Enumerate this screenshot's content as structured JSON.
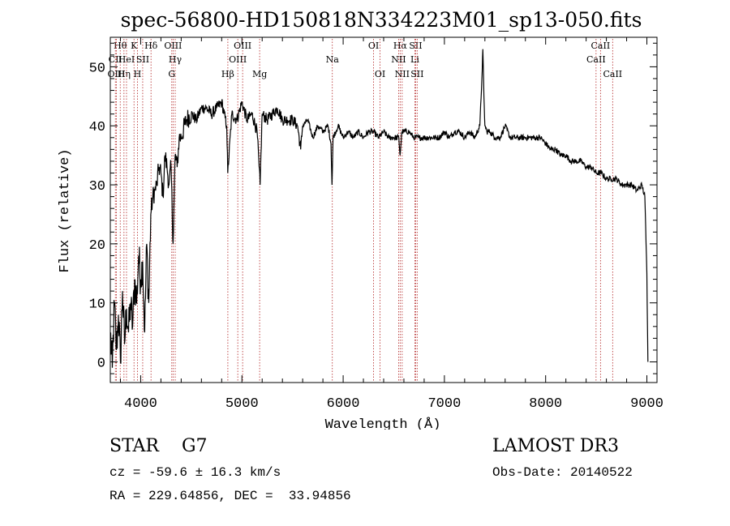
{
  "chart_data": {
    "type": "line",
    "title": "spec-56800-HD150818N334223M01_sp13-050.fits",
    "xlabel": "Wavelength (Å)",
    "ylabel": "Flux (relative)",
    "xlim": [
      3700,
      9100
    ],
    "ylim": [
      -3.5,
      55
    ],
    "xticks": [
      4000,
      5000,
      6000,
      7000,
      8000,
      9000
    ],
    "yticks": [
      0,
      10,
      20,
      30,
      40,
      50
    ],
    "grid": false,
    "series": [
      {
        "x": [
          3700,
          3720,
          3740,
          3760,
          3780,
          3800,
          3820,
          3840,
          3860,
          3880,
          3900,
          3920,
          3940,
          3960,
          3980,
          4000,
          4020,
          4040,
          4060,
          4080,
          4100,
          4120,
          4140,
          4160,
          4180,
          4200,
          4220,
          4240,
          4260,
          4280,
          4300,
          4320,
          4340,
          4360,
          4380,
          4400,
          4450,
          4500,
          4550,
          4600,
          4650,
          4700,
          4750,
          4800,
          4850,
          4860,
          4900,
          4950,
          5000,
          5050,
          5100,
          5150,
          5170,
          5180,
          5200,
          5250,
          5300,
          5350,
          5400,
          5450,
          5500,
          5550,
          5580,
          5600,
          5650,
          5700,
          5750,
          5800,
          5850,
          5880,
          5890,
          5900,
          5950,
          6000,
          6050,
          6100,
          6150,
          6200,
          6250,
          6300,
          6350,
          6400,
          6450,
          6500,
          6550,
          6562,
          6580,
          6600,
          6650,
          6700,
          6750,
          6800,
          6850,
          6900,
          6950,
          7000,
          7050,
          7100,
          7150,
          7200,
          7250,
          7300,
          7350,
          7370,
          7380,
          7390,
          7400,
          7420,
          7450,
          7500,
          7550,
          7600,
          7650,
          7700,
          7750,
          7800,
          7850,
          7900,
          7950,
          8000,
          8050,
          8100,
          8150,
          8200,
          8250,
          8300,
          8350,
          8400,
          8450,
          8500,
          8550,
          8600,
          8650,
          8700,
          8750,
          8800,
          8850,
          8900,
          8950,
          8980,
          9000,
          9010
        ],
        "y": [
          5,
          -1,
          10,
          2,
          8,
          0,
          12,
          3,
          9,
          5,
          10,
          6,
          14,
          10,
          18,
          14,
          17,
          5,
          20,
          10,
          25,
          28,
          29,
          30,
          33,
          32,
          28,
          35,
          33,
          30,
          33,
          20,
          35,
          33,
          38,
          38,
          41,
          42,
          41,
          43,
          43,
          42,
          43,
          44,
          40,
          32,
          42,
          41,
          44,
          41,
          42,
          39,
          33,
          30,
          42,
          41,
          42,
          43,
          41,
          41,
          41,
          40,
          36,
          40,
          41,
          38,
          40,
          39,
          40,
          37,
          30,
          38,
          40,
          38,
          39,
          38,
          39,
          38,
          39,
          39,
          38,
          39,
          38,
          38,
          38,
          35,
          39,
          39,
          39,
          38,
          38,
          38,
          38,
          38,
          38,
          39,
          38,
          39,
          39,
          38,
          39,
          38,
          40,
          48,
          53,
          45,
          40,
          39,
          39,
          38,
          38,
          40,
          38,
          38,
          38,
          38,
          38,
          38,
          38,
          37,
          36,
          36,
          35,
          35,
          34,
          34,
          34,
          33,
          33,
          32,
          32,
          31,
          31,
          31,
          30,
          30,
          30,
          29,
          30,
          28,
          15,
          0
        ]
      }
    ],
    "line_markers": [
      {
        "label": "Hθ",
        "x": 3798,
        "row": 0
      },
      {
        "label": "CII",
        "x": 3750,
        "row": 1
      },
      {
        "label": "OIII",
        "x": 3760,
        "row": 2
      },
      {
        "label": "Hη",
        "x": 3835,
        "row": 2
      },
      {
        "label": "HeI",
        "x": 3860,
        "row": 1
      },
      {
        "label": "K",
        "x": 3934,
        "row": 0
      },
      {
        "label": "H",
        "x": 3968,
        "row": 2
      },
      {
        "label": "SII",
        "x": 4020,
        "row": 1
      },
      {
        "label": "Hδ",
        "x": 4102,
        "row": 0
      },
      {
        "label": "OIII",
        "x": 4320,
        "row": 0
      },
      {
        "label": "Hγ",
        "x": 4341,
        "row": 1
      },
      {
        "label": "G",
        "x": 4307,
        "row": 2
      },
      {
        "label": "Hβ",
        "x": 4861,
        "row": 2
      },
      {
        "label": "OIII",
        "x": 4959,
        "row": 1
      },
      {
        "label": "OIII",
        "x": 5007,
        "row": 0
      },
      {
        "label": "Mg",
        "x": 5175,
        "row": 2
      },
      {
        "label": "Na",
        "x": 5893,
        "row": 1
      },
      {
        "label": "OI",
        "x": 6300,
        "row": 0
      },
      {
        "label": "OI",
        "x": 6364,
        "row": 2
      },
      {
        "label": "Hα",
        "x": 6563,
        "row": 0
      },
      {
        "label": "NII",
        "x": 6548,
        "row": 1
      },
      {
        "label": "NII",
        "x": 6583,
        "row": 2
      },
      {
        "label": "SII",
        "x": 6716,
        "row": 0
      },
      {
        "label": "Li",
        "x": 6708,
        "row": 1
      },
      {
        "label": "SII",
        "x": 6731,
        "row": 2
      },
      {
        "label": "CaII",
        "x": 8542,
        "row": 0
      },
      {
        "label": "CaII",
        "x": 8498,
        "row": 1
      },
      {
        "label": "CaII",
        "x": 8662,
        "row": 2
      }
    ]
  },
  "info": {
    "object_type": "STAR",
    "subclass": "G7",
    "survey": "LAMOST DR3",
    "cz": "cz = -59.6 ± 16.3 km/s",
    "obs_date": "Obs-Date: 20140522",
    "radec": "RA = 229.64856, DEC =  33.94856"
  }
}
